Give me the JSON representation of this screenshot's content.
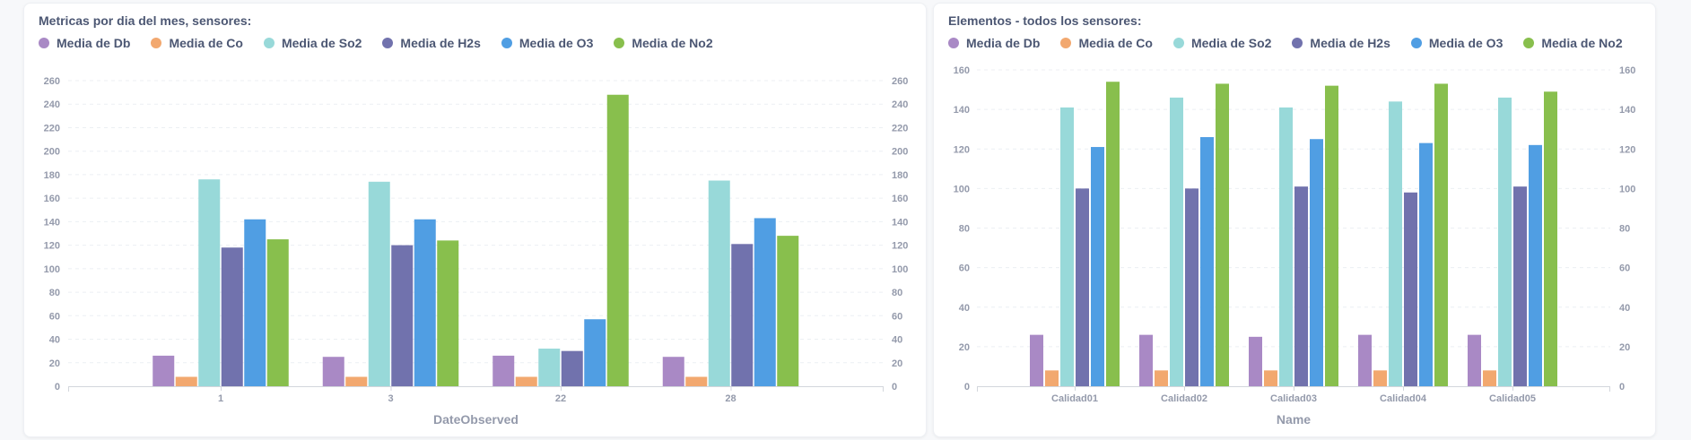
{
  "colors": {
    "Media de Db": "#a989c5",
    "Media de Co": "#f2a86f",
    "Media de So2": "#98d9d9",
    "Media de H2s": "#7172ad",
    "Media de O3": "#509ee3",
    "Media de No2": "#88bf4d"
  },
  "chart_data": [
    {
      "type": "bar",
      "title": "Metricas por dia del mes, sensores:",
      "xlabel": "DateObserved",
      "ylabel": "",
      "ylim": [
        0,
        260
      ],
      "yticks": [
        0,
        20,
        40,
        60,
        80,
        100,
        120,
        140,
        160,
        180,
        200,
        220,
        240,
        260
      ],
      "grid": true,
      "legend_position": "top-left",
      "categories": [
        "1",
        "3",
        "22",
        "28"
      ],
      "series": [
        {
          "name": "Media de Db",
          "values": [
            26,
            25,
            26,
            25
          ]
        },
        {
          "name": "Media de Co",
          "values": [
            8,
            8,
            8,
            8
          ]
        },
        {
          "name": "Media de So2",
          "values": [
            176,
            174,
            32,
            175
          ]
        },
        {
          "name": "Media de H2s",
          "values": [
            118,
            120,
            30,
            121
          ]
        },
        {
          "name": "Media de O3",
          "values": [
            142,
            142,
            57,
            143
          ]
        },
        {
          "name": "Media de No2",
          "values": [
            125,
            124,
            248,
            128
          ]
        }
      ]
    },
    {
      "type": "bar",
      "title": "Elementos - todos los sensores:",
      "xlabel": "Name",
      "ylabel": "",
      "ylim": [
        0,
        160
      ],
      "yticks": [
        0,
        20,
        40,
        60,
        80,
        100,
        120,
        140,
        160
      ],
      "grid": true,
      "legend_position": "top-left",
      "categories": [
        "Calidad01",
        "Calidad02",
        "Calidad03",
        "Calidad04",
        "Calidad05"
      ],
      "series": [
        {
          "name": "Media de Db",
          "values": [
            26,
            26,
            25,
            26,
            26
          ]
        },
        {
          "name": "Media de Co",
          "values": [
            8,
            8,
            8,
            8,
            8
          ]
        },
        {
          "name": "Media de So2",
          "values": [
            141,
            146,
            141,
            144,
            146
          ]
        },
        {
          "name": "Media de H2s",
          "values": [
            100,
            100,
            101,
            98,
            101
          ]
        },
        {
          "name": "Media de O3",
          "values": [
            121,
            126,
            125,
            123,
            122
          ]
        },
        {
          "name": "Media de No2",
          "values": [
            154,
            153,
            152,
            153,
            149
          ]
        }
      ]
    }
  ]
}
